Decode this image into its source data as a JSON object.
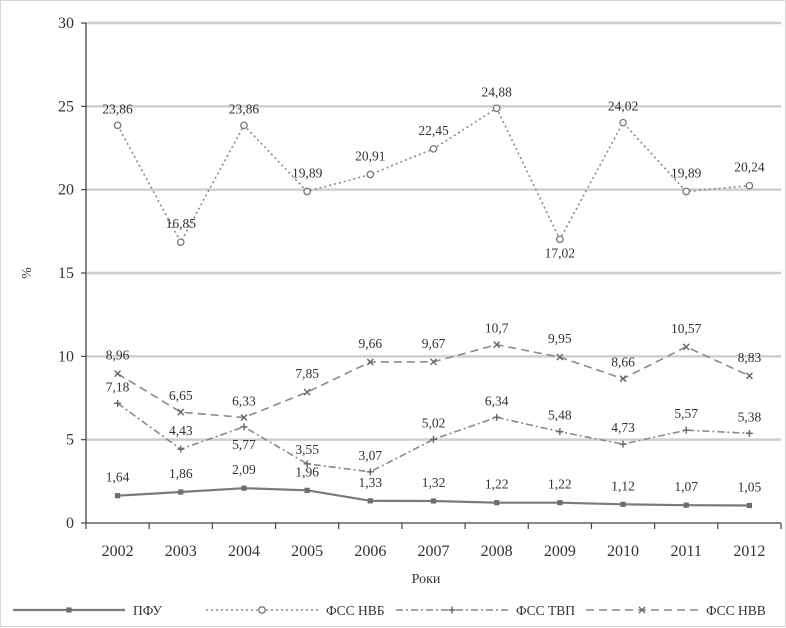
{
  "chart_data": {
    "type": "line",
    "x": [
      "2002",
      "2003",
      "2004",
      "2005",
      "2006",
      "2007",
      "2008",
      "2009",
      "2010",
      "2011",
      "2012"
    ],
    "xlabel": "Роки",
    "ylabel": "%",
    "ylim": [
      0,
      30
    ],
    "yticks": [
      "0",
      "5",
      "10",
      "15",
      "20",
      "25",
      "30"
    ],
    "grid": "horizontal",
    "legend_position": "bottom",
    "series": [
      {
        "name": "ПФУ",
        "style": "solid",
        "color": "#7a7a7a",
        "values": [
          1.64,
          1.86,
          2.09,
          1.96,
          1.33,
          1.32,
          1.22,
          1.22,
          1.12,
          1.07,
          1.05
        ],
        "labels": [
          "1,64",
          "1,86",
          "2,09",
          "1,96",
          "1,33",
          "1,32",
          "1,22",
          "1,22",
          "1,12",
          "1,07",
          "1,05"
        ]
      },
      {
        "name": "ФСС НВБ",
        "style": "dotted",
        "color": "#8a8a8a",
        "values": [
          23.86,
          16.85,
          23.86,
          19.89,
          20.91,
          22.45,
          24.88,
          17.02,
          24.02,
          19.89,
          20.24
        ],
        "labels": [
          "23,86",
          "16,85",
          "23,86",
          "19,89",
          "20,91",
          "22,45",
          "24,88",
          "17,02",
          "24,02",
          "19,89",
          "20,24"
        ]
      },
      {
        "name": "ФСС ТВП",
        "style": "dashdot",
        "color": "#8a8a8a",
        "values": [
          7.18,
          4.43,
          5.77,
          3.55,
          3.07,
          5.02,
          6.34,
          5.48,
          4.73,
          5.57,
          5.38
        ],
        "labels": [
          "7,18",
          "4,43",
          "5,77",
          "3,55",
          "3,07",
          "5,02",
          "6,34",
          "5,48",
          "4,73",
          "5,57",
          "5,38"
        ]
      },
      {
        "name": "ФСС НВВ",
        "style": "dashed",
        "color": "#8a8a8a",
        "values": [
          8.96,
          6.65,
          6.33,
          7.85,
          9.66,
          9.67,
          10.7,
          9.95,
          8.66,
          10.57,
          8.83
        ],
        "labels": [
          "8,96",
          "6,65",
          "6,33",
          "7,85",
          "9,66",
          "9,67",
          "10,7",
          "9,95",
          "8,66",
          "10,57",
          "8,83"
        ]
      }
    ]
  }
}
